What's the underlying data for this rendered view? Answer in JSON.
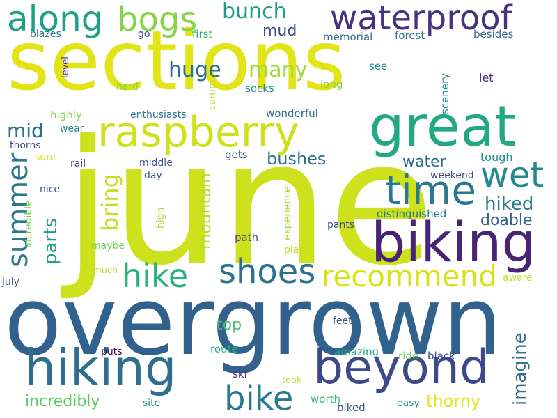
{
  "words": [
    {
      "text": "june",
      "color": "#cde11d"
    },
    {
      "text": "overgrown",
      "color": "#31618d"
    },
    {
      "text": "sections",
      "color": "#e2e418"
    },
    {
      "text": "great",
      "color": "#22a884"
    },
    {
      "text": "biking",
      "color": "#482475"
    },
    {
      "text": "raspberry",
      "color": "#cde11d"
    },
    {
      "text": "hiking",
      "color": "#2e6f8e"
    },
    {
      "text": "beyond",
      "color": "#3e4989"
    },
    {
      "text": "waterproof",
      "color": "#46327e"
    },
    {
      "text": "time",
      "color": "#2a788e"
    },
    {
      "text": "wet",
      "color": "#23898e"
    },
    {
      "text": "along",
      "color": "#1fa187"
    },
    {
      "text": "bogs",
      "color": "#86d549"
    },
    {
      "text": "shoes",
      "color": "#2d708e"
    },
    {
      "text": "recommend",
      "color": "#d8e219"
    },
    {
      "text": "hike",
      "color": "#2cb17e"
    },
    {
      "text": "bike",
      "color": "#2a788e"
    },
    {
      "text": "summer",
      "color": "#2a788e"
    },
    {
      "text": "huge",
      "color": "#2e6e8e"
    },
    {
      "text": "many",
      "color": "#a0da39"
    },
    {
      "text": "bunch",
      "color": "#1f9e89"
    },
    {
      "text": "mid",
      "color": "#2d708e"
    },
    {
      "text": "mud",
      "color": "#3e4c8a"
    },
    {
      "text": "parts",
      "color": "#1e9b8a"
    },
    {
      "text": "bring",
      "color": "#c2df23"
    },
    {
      "text": "hiked",
      "color": "#287c8e"
    },
    {
      "text": "doable",
      "color": "#32648e"
    },
    {
      "text": "mountain",
      "color": "#b5de2b"
    },
    {
      "text": "bushes",
      "color": "#2c728e"
    },
    {
      "text": "water",
      "color": "#2e6d8e"
    },
    {
      "text": "top",
      "color": "#4ac16d"
    },
    {
      "text": "incredibly",
      "color": "#5ec962"
    },
    {
      "text": "thorny",
      "color": "#e5e419"
    },
    {
      "text": "imagine",
      "color": "#2d708e"
    },
    {
      "text": "blazes",
      "color": "#2a788e"
    },
    {
      "text": "go",
      "color": "#3e4a89"
    },
    {
      "text": "first",
      "color": "#2ab07f"
    },
    {
      "text": "memorial",
      "color": "#2e6e8e"
    },
    {
      "text": "forest",
      "color": "#2a788e"
    },
    {
      "text": "besides",
      "color": "#31688e"
    },
    {
      "text": "level",
      "color": "#481a6c"
    },
    {
      "text": "see",
      "color": "#23888e"
    },
    {
      "text": "camp",
      "color": "#b5de2b"
    },
    {
      "text": "scenery",
      "color": "#21918c"
    },
    {
      "text": "let",
      "color": "#472d7b"
    },
    {
      "text": "hard",
      "color": "#84d44b"
    },
    {
      "text": "socks",
      "color": "#21908d"
    },
    {
      "text": "long",
      "color": "#86d549"
    },
    {
      "text": "highly",
      "color": "#84d44b"
    },
    {
      "text": "enthusiasts",
      "color": "#2c738e"
    },
    {
      "text": "wonderful",
      "color": "#2e6e8e"
    },
    {
      "text": "wear",
      "color": "#25858e"
    },
    {
      "text": "thorns",
      "color": "#3f4889"
    },
    {
      "text": "gets",
      "color": "#38588c"
    },
    {
      "text": "tough",
      "color": "#228c8d"
    },
    {
      "text": "sure",
      "color": "#d8e219"
    },
    {
      "text": "rail",
      "color": "#3f4788"
    },
    {
      "text": "middle",
      "color": "#3b528b"
    },
    {
      "text": "day",
      "color": "#3b528b"
    },
    {
      "text": "weekend",
      "color": "#3e4989"
    },
    {
      "text": "nice",
      "color": "#3a548c"
    },
    {
      "text": "high",
      "color": "#a8db34"
    },
    {
      "text": "incredible",
      "color": "#75d054"
    },
    {
      "text": "experience",
      "color": "#a8db34"
    },
    {
      "text": "distinguished",
      "color": "#2c728e"
    },
    {
      "text": "pants",
      "color": "#3b528b"
    },
    {
      "text": "path",
      "color": "#3e4989"
    },
    {
      "text": "maybe",
      "color": "#75d054"
    },
    {
      "text": "plan",
      "color": "#c2df23"
    },
    {
      "text": "much",
      "color": "#b5de2b"
    },
    {
      "text": "july",
      "color": "#39568c"
    },
    {
      "text": "aware",
      "color": "#c2df23"
    },
    {
      "text": "feet",
      "color": "#38588c"
    },
    {
      "text": "puts",
      "color": "#440154"
    },
    {
      "text": "route",
      "color": "#2ab07f"
    },
    {
      "text": "amazing",
      "color": "#22a884"
    },
    {
      "text": "ride",
      "color": "#6ccd5a"
    },
    {
      "text": "black",
      "color": "#3f4788"
    },
    {
      "text": "ski",
      "color": "#46307e"
    },
    {
      "text": "took",
      "color": "#b5de2b"
    },
    {
      "text": "site",
      "color": "#25848e"
    },
    {
      "text": "worth",
      "color": "#3dbc74"
    },
    {
      "text": "easy",
      "color": "#1f958b"
    },
    {
      "text": "biked",
      "color": "#3b518b"
    }
  ]
}
